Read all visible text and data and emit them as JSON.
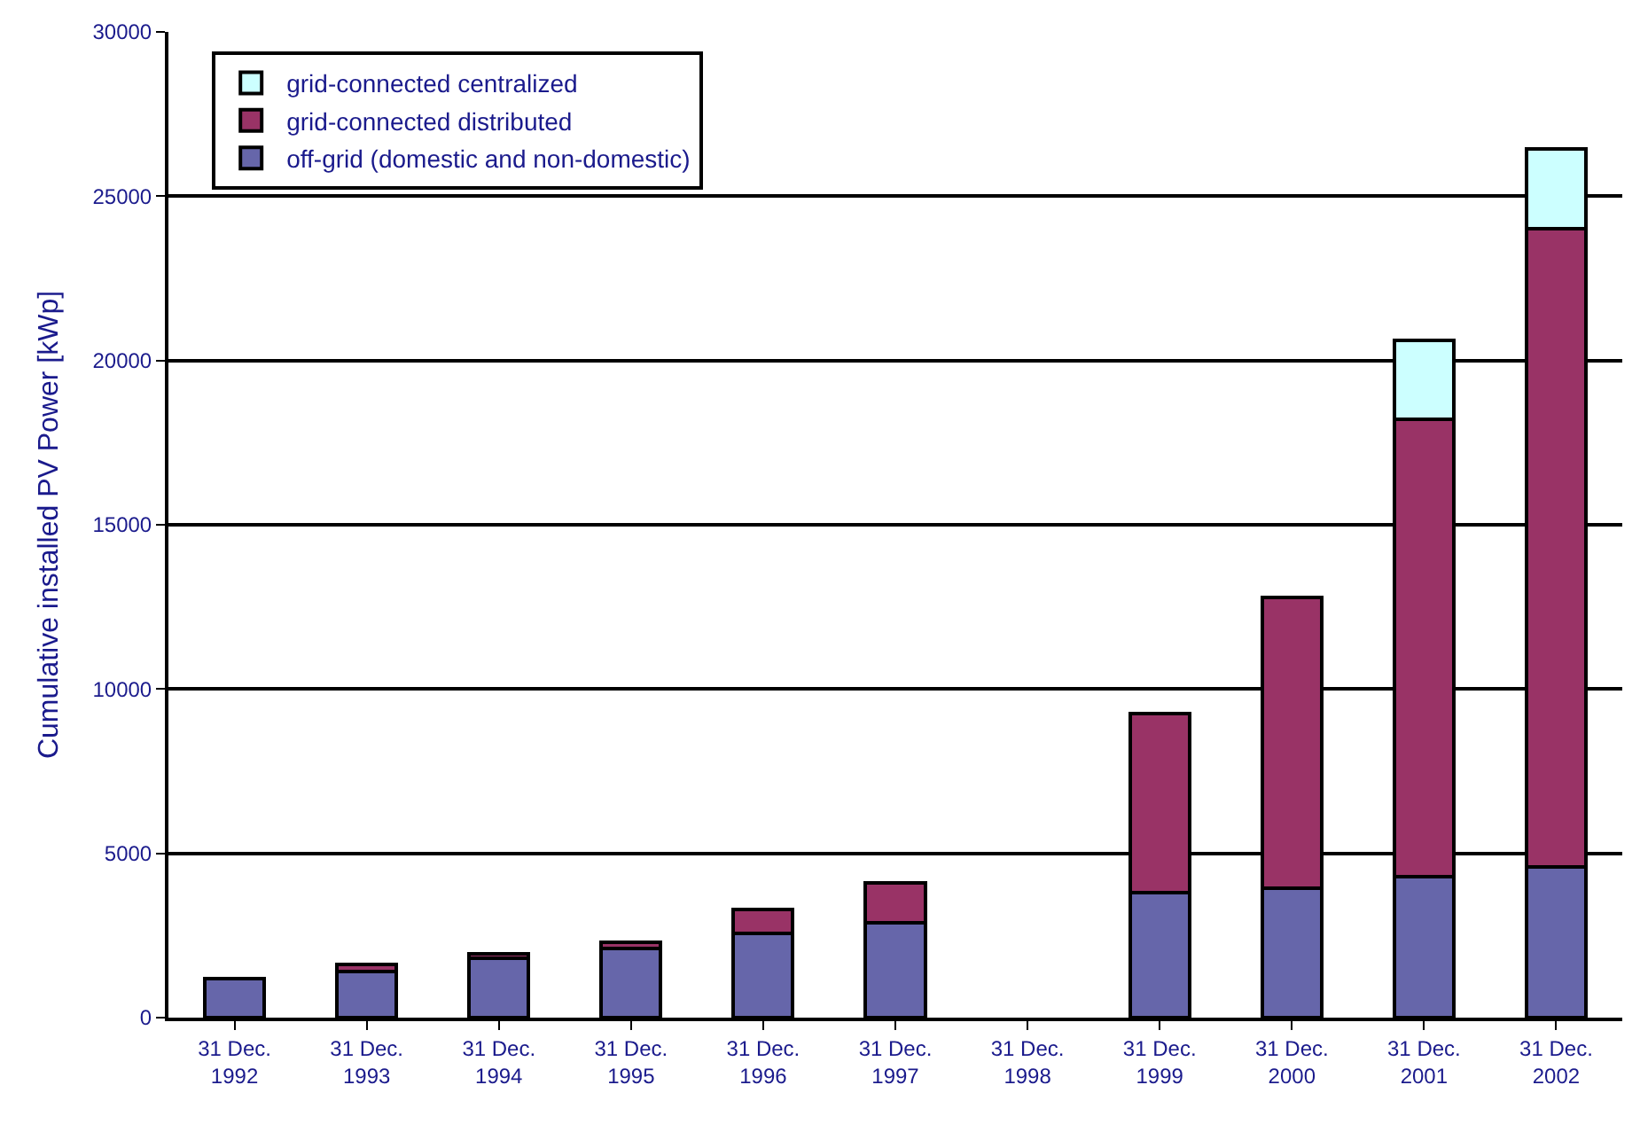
{
  "chart_data": {
    "type": "bar",
    "stacked": true,
    "ylabel": "Cumulative installed PV Power [kWp]",
    "categories": [
      "31 Dec.\n1992",
      "31 Dec.\n1993",
      "31 Dec.\n1994",
      "31 Dec.\n1995",
      "31 Dec.\n1996",
      "31 Dec.\n1997",
      "31 Dec.\n1998",
      "31 Dec.\n1999",
      "31 Dec.\n2000",
      "31 Dec.\n2001",
      "31 Dec.\n2002"
    ],
    "series": [
      {
        "name": "off-grid (domestic and non-domestic)",
        "color": "#6666aa",
        "values": [
          1200,
          1400,
          1800,
          2100,
          2550,
          2900,
          null,
          3800,
          3950,
          4300,
          4600
        ]
      },
      {
        "name": "grid-connected distributed",
        "color": "#993366",
        "values": [
          null,
          230,
          150,
          200,
          750,
          1200,
          null,
          5450,
          8850,
          13900,
          19400
        ]
      },
      {
        "name": "grid-connected centralized",
        "color": "#ccffff",
        "values": [
          null,
          null,
          null,
          null,
          null,
          null,
          null,
          null,
          null,
          2400,
          2450
        ]
      }
    ],
    "ylim": [
      0,
      30000
    ],
    "yticks": [
      0,
      5000,
      10000,
      15000,
      20000,
      25000,
      30000
    ],
    "grid": "y",
    "legend": "top left"
  }
}
